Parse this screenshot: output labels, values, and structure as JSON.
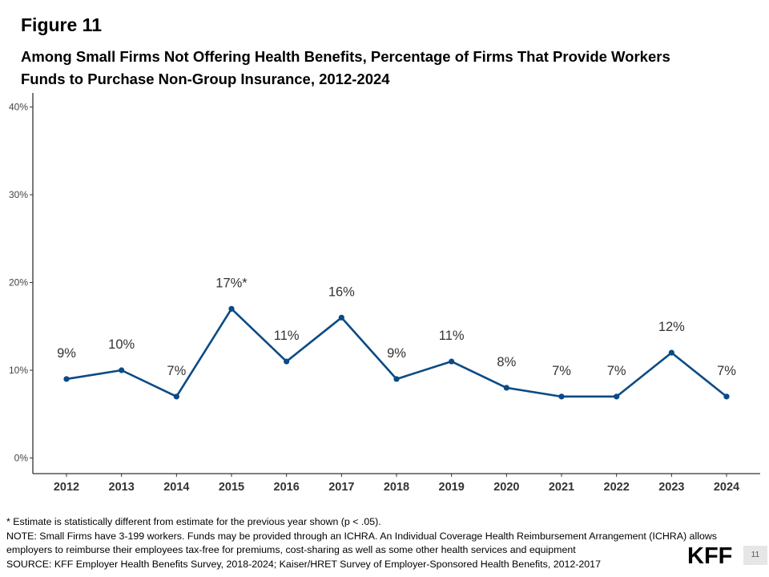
{
  "figure_label": "Figure 11",
  "title_line1": "Among Small Firms Not Offering Health Benefits, Percentage of Firms That Provide Workers",
  "title_line2": "Funds to Purchase Non-Group Insurance, 2012-2024",
  "chart_data": {
    "type": "line",
    "title": "Among Small Firms Not Offering Health Benefits, Percentage of Firms That Provide Workers Funds to Purchase Non-Group Insurance, 2012-2024",
    "xlabel": "",
    "ylabel": "",
    "categories": [
      "2012",
      "2013",
      "2014",
      "2015",
      "2016",
      "2017",
      "2018",
      "2019",
      "2020",
      "2021",
      "2022",
      "2023",
      "2024"
    ],
    "values": [
      9,
      10,
      7,
      17,
      11,
      16,
      9,
      11,
      8,
      7,
      7,
      12,
      7
    ],
    "data_labels": [
      "9%",
      "10%",
      "7%",
      "17%*",
      "11%",
      "16%",
      "9%",
      "11%",
      "8%",
      "7%",
      "7%",
      "12%",
      "7%"
    ],
    "ylim": [
      0,
      40
    ],
    "yticks": [
      0,
      10,
      20,
      30,
      40
    ],
    "ytick_labels": [
      "0%",
      "10%",
      "20%",
      "30%",
      "40%"
    ],
    "line_color": "#0b4a85",
    "grid": false,
    "legend": "none"
  },
  "notes": {
    "line1": "* Estimate is statistically different from estimate for the previous year shown (p < .05).",
    "line2": "NOTE: Small Firms have 3-199 workers. Funds may be provided through an ICHRA. An Individual Coverage Health Reimbursement Arrangement (ICHRA) allows",
    "line3": "employers to reimburse their employees tax-free for premiums, cost-sharing as well as some other health services and equipment",
    "line4": "SOURCE: KFF Employer Health Benefits Survey, 2018-2024; Kaiser/HRET Survey of Employer-Sponsored Health Benefits, 2012-2017"
  },
  "logo": "KFF",
  "page_number": "11"
}
